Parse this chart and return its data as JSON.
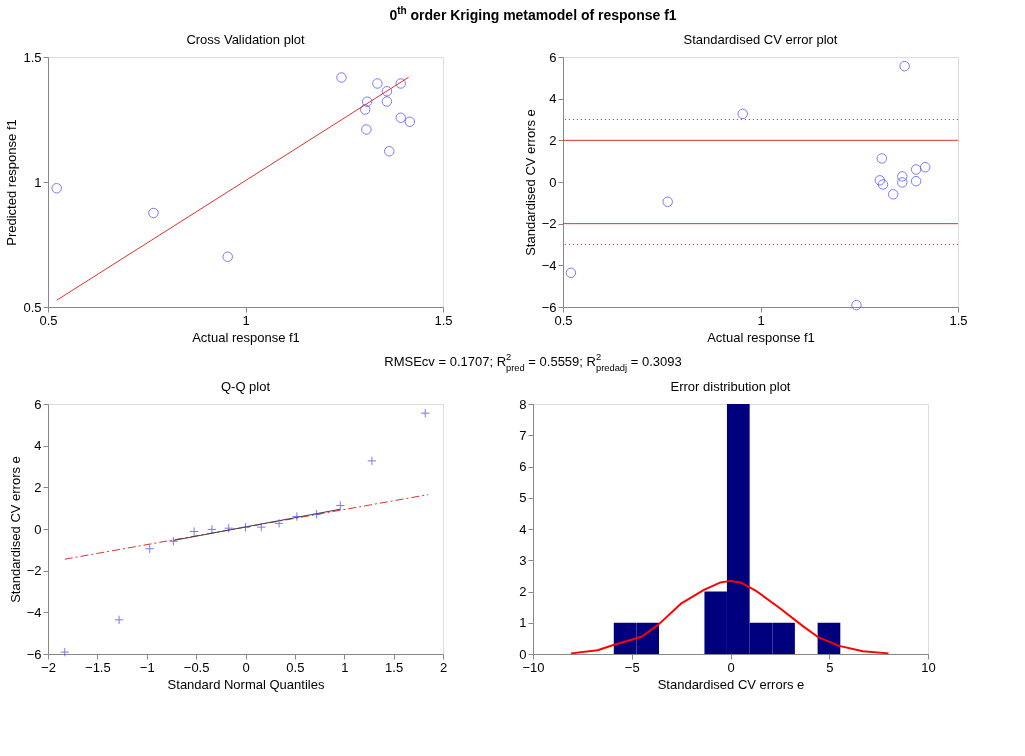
{
  "chart_data": [
    {
      "type": "scatter",
      "title": "Cross Validation plot",
      "xlabel": "Actual response f1",
      "ylabel": "Predicted response f1",
      "xlim": [
        0.5,
        1.5
      ],
      "xticks": [
        0.5,
        1,
        1.5
      ],
      "ylim": [
        0.5,
        1.5
      ],
      "yticks": [
        0.5,
        1,
        1.5
      ],
      "grid": false,
      "annotations": [
        "0$^{th}$ order Kriging metamodel of response f1"
      ],
      "series": [
        {
          "type": "scatter",
          "marker": "circle",
          "color": "#4040ff",
          "x": [
            0.522,
            0.767,
            0.955,
            1.243,
            1.334,
            1.393,
            1.358,
            1.308,
            1.358,
            1.303,
            1.393,
            1.416,
            1.306,
            1.364
          ],
          "values": [
            0.975,
            0.876,
            0.701,
            1.418,
            1.394,
            1.394,
            1.363,
            1.321,
            1.322,
            1.29,
            1.257,
            1.241,
            1.21,
            1.123
          ]
        },
        {
          "type": "line",
          "line_style": "solid",
          "color": "#e03030",
          "x": [
            0.522,
            1.413
          ],
          "values": [
            0.527,
            1.419
          ]
        }
      ]
    },
    {
      "type": "scatter",
      "title": "Standardised CV error plot",
      "xlabel": "Actual response f1",
      "ylabel": "Standardised CV errors e",
      "xlim": [
        0.5,
        1.5
      ],
      "xticks": [
        0.5,
        1,
        1.5
      ],
      "ylim": [
        -6,
        6
      ],
      "yticks": [
        -6,
        -4,
        -2,
        0,
        2,
        4,
        6
      ],
      "grid": false,
      "ref_lines": [
        {
          "axis": "y",
          "value": 3,
          "color": "#e03030",
          "line_style": "dotted"
        },
        {
          "axis": "y",
          "value": 2,
          "color": "#e03030",
          "line_style": "solid"
        },
        {
          "axis": "y",
          "value": -2,
          "color": "#e03030",
          "line_style": "solid"
        },
        {
          "axis": "y",
          "value": -3,
          "color": "#e03030",
          "line_style": "dotted"
        }
      ],
      "series": [
        {
          "type": "scatter",
          "marker": "circle",
          "color": "#4040ff",
          "x": [
            0.52,
            0.765,
            0.955,
            1.243,
            1.307,
            1.302,
            1.31,
            1.336,
            1.359,
            1.359,
            1.365,
            1.394,
            1.394,
            1.417
          ],
          "values": [
            -4.36,
            -0.95,
            3.27,
            -5.91,
            1.13,
            0.08,
            -0.12,
            -0.59,
            0.27,
            -0.02,
            5.56,
            0.6,
            0.04,
            0.71
          ]
        }
      ]
    },
    {
      "type": "scatter",
      "title": "Q-Q plot",
      "xlabel": "Standard Normal Quantiles",
      "ylabel": "Standardised CV errors e",
      "xlim": [
        -2,
        2
      ],
      "xticks": [
        -2,
        -1.5,
        -1,
        -0.5,
        0,
        0.5,
        1,
        1.5,
        2
      ],
      "ylim": [
        -6,
        6
      ],
      "yticks": [
        -6,
        -4,
        -2,
        0,
        2,
        4,
        6
      ],
      "grid": false,
      "annotations": [
        "RMSEcv = 0.1707; R$^{2}$$_{pred}$ = 0.5559; R$^{2}$$_{predadj}$ = 0.3093"
      ],
      "series": [
        {
          "type": "line",
          "line_style": "dashed",
          "color": "#e03030",
          "x": [
            -1.83,
            1.85
          ],
          "values": [
            -1.45,
            1.65
          ]
        },
        {
          "type": "line",
          "line_style": "solid",
          "color": "#404040",
          "x": [
            -0.73,
            0.96
          ],
          "values": [
            -0.55,
            0.95
          ]
        },
        {
          "type": "scatter",
          "marker": "cross",
          "color": "#4040ff",
          "x": [
            -1.83,
            -1.28,
            -0.97,
            -0.73,
            -0.52,
            -0.34,
            -0.17,
            0.0,
            0.16,
            0.34,
            0.52,
            0.72,
            0.96,
            1.28,
            1.82
          ],
          "values": [
            -5.91,
            -4.36,
            -0.95,
            -0.59,
            -0.12,
            -0.02,
            0.04,
            0.08,
            0.09,
            0.27,
            0.6,
            0.71,
            1.13,
            3.27,
            5.56
          ]
        }
      ]
    },
    {
      "type": "histogram",
      "title": "Error distribution plot",
      "xlabel": "Standardised CV errors e",
      "xlim": [
        -10,
        10
      ],
      "xticks": [
        -10,
        -5,
        0,
        5,
        10
      ],
      "ylim": [
        0,
        8
      ],
      "yticks": [
        0,
        1,
        2,
        3,
        4,
        5,
        6,
        7,
        8
      ],
      "grid": false,
      "color": "#00007f",
      "bins": [
        -5.91,
        -4.76,
        -3.62,
        -2.47,
        -1.32,
        -0.18,
        0.97,
        2.12,
        3.26,
        4.41,
        5.56
      ],
      "values": [
        1,
        1,
        0,
        0,
        2,
        8,
        1,
        1,
        0,
        1
      ],
      "series": [
        {
          "type": "line",
          "line_style": "solid",
          "color": "#ff0000",
          "x": [
            -8.07,
            -6.73,
            -5.97,
            -4.5,
            -3.65,
            -2.47,
            -1.32,
            -0.5,
            0,
            0.5,
            1.32,
            2.47,
            3.65,
            4.41,
            5.5,
            6.7,
            8.0
          ],
          "values": [
            0.02,
            0.12,
            0.28,
            0.55,
            0.94,
            1.63,
            2.06,
            2.29,
            2.34,
            2.29,
            2.01,
            1.48,
            0.9,
            0.55,
            0.26,
            0.09,
            0.02
          ]
        }
      ]
    }
  ]
}
